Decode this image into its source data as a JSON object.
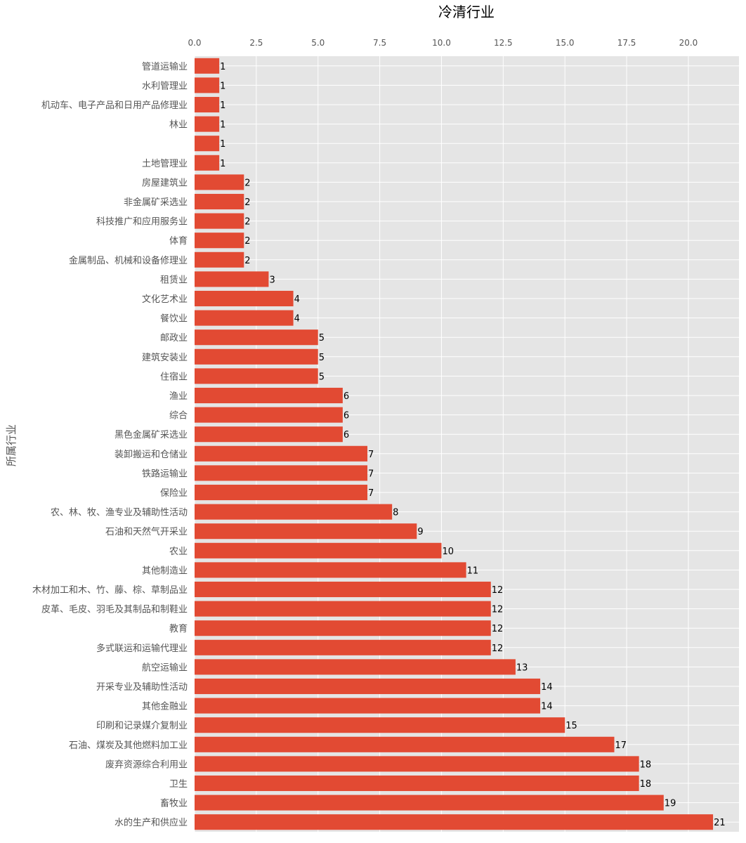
{
  "chart_data": {
    "type": "bar",
    "orientation": "horizontal",
    "title": "冷清行业",
    "xlabel": "",
    "ylabel": "所属行业",
    "xlim": [
      0,
      22.05
    ],
    "xticks": [
      0.0,
      2.5,
      5.0,
      7.5,
      10.0,
      12.5,
      15.0,
      17.5,
      20.0
    ],
    "xtick_labels": [
      "0.0",
      "2.5",
      "5.0",
      "7.5",
      "10.0",
      "12.5",
      "15.0",
      "17.5",
      "20.0"
    ],
    "x_axis_position": "top",
    "grid": true,
    "background": "#e5e5e5",
    "bar_color": "#e24a33",
    "categories": [
      "管道运输业",
      "水利管理业",
      "机动车、电子产品和日用产品修理业",
      "林业",
      "",
      "土地管理业",
      "房屋建筑业",
      "非金属矿采选业",
      "科技推广和应用服务业",
      "体育",
      "金属制品、机械和设备修理业",
      "租赁业",
      "文化艺术业",
      "餐饮业",
      "邮政业",
      "建筑安装业",
      "住宿业",
      "渔业",
      "综合",
      "黑色金属矿采选业",
      "装卸搬运和仓储业",
      "铁路运输业",
      "保险业",
      "农、林、牧、渔专业及辅助性活动",
      "石油和天然气开采业",
      "农业",
      "其他制造业",
      "木材加工和木、竹、藤、棕、草制品业",
      "皮革、毛皮、羽毛及其制品和制鞋业",
      "教育",
      "多式联运和运输代理业",
      "航空运输业",
      "开采专业及辅助性活动",
      "其他金融业",
      "印刷和记录媒介复制业",
      "石油、煤炭及其他燃料加工业",
      "废弃资源综合利用业",
      "卫生",
      "畜牧业",
      "水的生产和供应业"
    ],
    "values": [
      1,
      1,
      1,
      1,
      1,
      1,
      2,
      2,
      2,
      2,
      2,
      3,
      4,
      4,
      5,
      5,
      5,
      6,
      6,
      6,
      7,
      7,
      7,
      8,
      9,
      10,
      11,
      12,
      12,
      12,
      12,
      13,
      14,
      14,
      15,
      17,
      18,
      18,
      19,
      21
    ],
    "data_labels": [
      "1",
      "1",
      "1",
      "1",
      "1",
      "1",
      "2",
      "2",
      "2",
      "2",
      "2",
      "3",
      "4",
      "4",
      "5",
      "5",
      "5",
      "6",
      "6",
      "6",
      "7",
      "7",
      "7",
      "8",
      "9",
      "10",
      "11",
      "12",
      "12",
      "12",
      "12",
      "13",
      "14",
      "14",
      "15",
      "17",
      "18",
      "18",
      "19",
      "21"
    ]
  }
}
